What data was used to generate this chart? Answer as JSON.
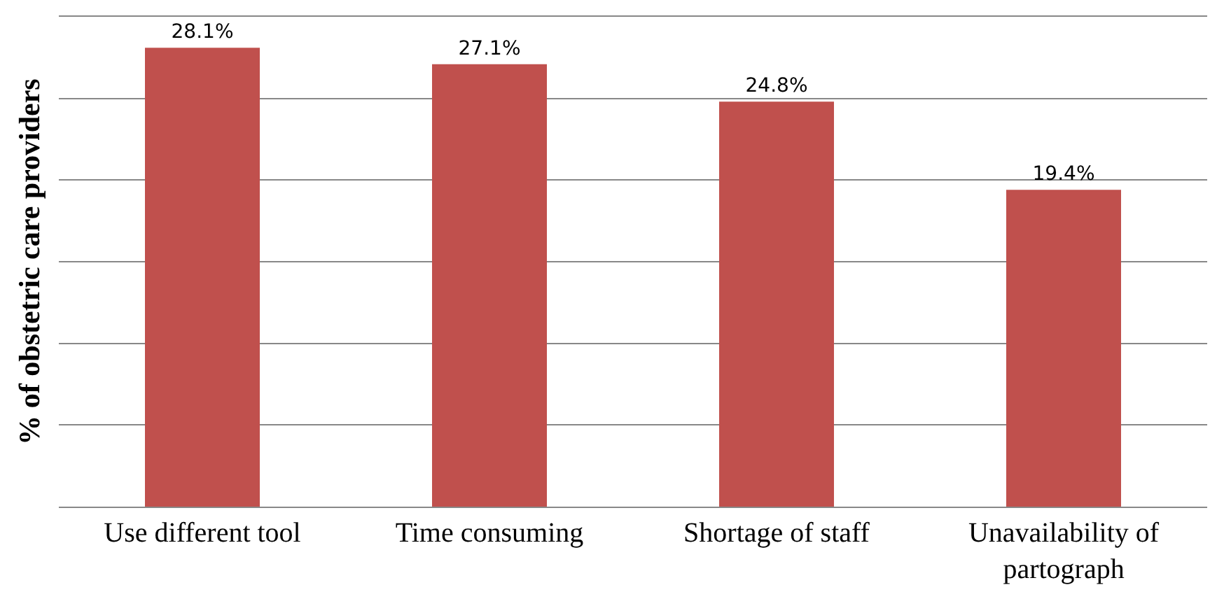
{
  "chart_data": {
    "type": "bar",
    "ylabel": "% of obstetric care providers",
    "categories": [
      "Use different tool",
      "Time consuming",
      "Shortage of staff",
      "Unavailability of partograph"
    ],
    "values": [
      28.1,
      27.1,
      24.8,
      19.4
    ],
    "value_labels": [
      "28.1%",
      "27.1%",
      "24.8%",
      "19.4%"
    ],
    "color": "#c0504d",
    "ylim": [
      0,
      30
    ],
    "yticks": [
      {
        "value": 0,
        "label": null
      },
      {
        "value": 5,
        "label": null
      },
      {
        "value": 10,
        "label": null
      },
      {
        "value": 15,
        "label": null
      },
      {
        "value": 20,
        "label": null
      },
      {
        "value": 25,
        "label": null
      },
      {
        "value": 30,
        "label": null
      }
    ],
    "grid": "y",
    "legend": false
  }
}
